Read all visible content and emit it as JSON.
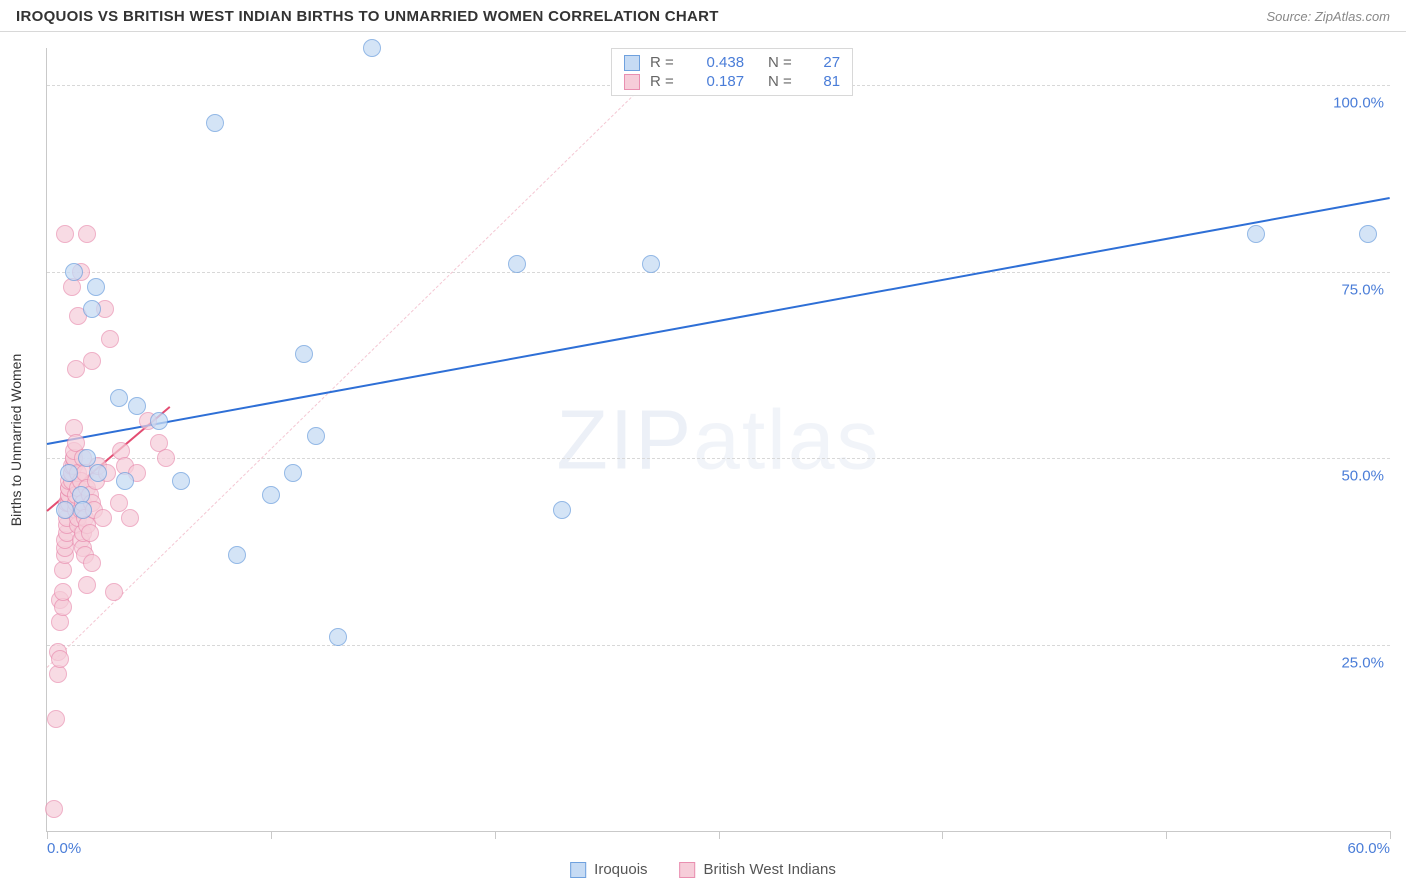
{
  "header": {
    "title": "IROQUOIS VS BRITISH WEST INDIAN BIRTHS TO UNMARRIED WOMEN CORRELATION CHART",
    "source": "Source: ZipAtlas.com"
  },
  "watermark": {
    "bold": "ZIP",
    "light": "atlas"
  },
  "chart": {
    "type": "scatter",
    "y_axis_title": "Births to Unmarried Women",
    "xlim": [
      0,
      60
    ],
    "ylim": [
      0,
      105
    ],
    "x_ticks": [
      0,
      10,
      20,
      30,
      40,
      50,
      60
    ],
    "x_tick_labels": [
      "0.0%",
      "",
      "",
      "",
      "",
      "",
      "60.0%"
    ],
    "y_grid": [
      25,
      50,
      75,
      100
    ],
    "y_grid_labels": [
      "25.0%",
      "50.0%",
      "75.0%",
      "100.0%"
    ],
    "marker_radius": 9,
    "grid_color": "#d8d8d8",
    "axis_color": "#c9c9c9",
    "background_color": "#ffffff",
    "title_fontsize": 15,
    "label_fontsize": 15,
    "tick_color": "#4a7dd8"
  },
  "series": {
    "iroquois": {
      "label": "Iroquois",
      "fill": "#c6dbf4",
      "stroke": "#6fa1de",
      "fill_opacity": 0.75,
      "R": "0.438",
      "N": "27",
      "trend": {
        "x1": 0,
        "y1": 52,
        "x2": 60,
        "y2": 85,
        "color": "#2e6fd6",
        "width": 2.5,
        "dash": false
      },
      "extrapolate": {
        "x1": 0,
        "y1": 22,
        "x2": 28,
        "y2": 104,
        "color": "#f4c7d3",
        "width": 1,
        "dash": true
      },
      "points": [
        [
          0.8,
          43
        ],
        [
          1.0,
          48
        ],
        [
          1.2,
          75
        ],
        [
          1.5,
          45
        ],
        [
          1.6,
          43
        ],
        [
          1.8,
          50
        ],
        [
          2.0,
          70
        ],
        [
          2.2,
          73
        ],
        [
          2.3,
          48
        ],
        [
          3.2,
          58
        ],
        [
          3.5,
          47
        ],
        [
          4.0,
          57
        ],
        [
          5.0,
          55
        ],
        [
          6.0,
          47
        ],
        [
          7.5,
          95
        ],
        [
          8.5,
          37
        ],
        [
          10.0,
          45
        ],
        [
          11.0,
          48
        ],
        [
          11.5,
          64
        ],
        [
          12.0,
          53
        ],
        [
          13.0,
          26
        ],
        [
          14.5,
          105
        ],
        [
          21.0,
          76
        ],
        [
          23.0,
          43
        ],
        [
          27.0,
          76
        ],
        [
          54.0,
          80
        ],
        [
          59.0,
          80
        ]
      ]
    },
    "bwi": {
      "label": "British West Indians",
      "fill": "#f6cdd9",
      "stroke": "#e98fb0",
      "fill_opacity": 0.7,
      "R": "0.187",
      "N": "81",
      "trend": {
        "x1": 0,
        "y1": 43,
        "x2": 5.5,
        "y2": 57,
        "color": "#e34d72",
        "width": 2,
        "dash": false
      },
      "points": [
        [
          0.3,
          3
        ],
        [
          0.4,
          15
        ],
        [
          0.5,
          21
        ],
        [
          0.5,
          24
        ],
        [
          0.6,
          23
        ],
        [
          0.6,
          28
        ],
        [
          0.6,
          31
        ],
        [
          0.7,
          30
        ],
        [
          0.7,
          32
        ],
        [
          0.7,
          35
        ],
        [
          0.8,
          37
        ],
        [
          0.8,
          38
        ],
        [
          0.8,
          39
        ],
        [
          0.8,
          80
        ],
        [
          0.9,
          40
        ],
        [
          0.9,
          41
        ],
        [
          0.9,
          42
        ],
        [
          0.9,
          43
        ],
        [
          0.9,
          44
        ],
        [
          1.0,
          44
        ],
        [
          1.0,
          45
        ],
        [
          1.0,
          45
        ],
        [
          1.0,
          46
        ],
        [
          1.0,
          46
        ],
        [
          1.0,
          47
        ],
        [
          1.1,
          47
        ],
        [
          1.1,
          48
        ],
        [
          1.1,
          48
        ],
        [
          1.1,
          49
        ],
        [
          1.1,
          73
        ],
        [
          1.2,
          49
        ],
        [
          1.2,
          50
        ],
        [
          1.2,
          50
        ],
        [
          1.2,
          51
        ],
        [
          1.2,
          54
        ],
        [
          1.3,
          43
        ],
        [
          1.3,
          44
        ],
        [
          1.3,
          45
        ],
        [
          1.3,
          52
        ],
        [
          1.3,
          62
        ],
        [
          1.4,
          41
        ],
        [
          1.4,
          42
        ],
        [
          1.4,
          46
        ],
        [
          1.4,
          48
        ],
        [
          1.4,
          69
        ],
        [
          1.5,
          39
        ],
        [
          1.5,
          43
        ],
        [
          1.5,
          47
        ],
        [
          1.5,
          75
        ],
        [
          1.6,
          38
        ],
        [
          1.6,
          40
        ],
        [
          1.6,
          44
        ],
        [
          1.6,
          50
        ],
        [
          1.7,
          37
        ],
        [
          1.7,
          42
        ],
        [
          1.7,
          48
        ],
        [
          1.8,
          33
        ],
        [
          1.8,
          41
        ],
        [
          1.8,
          46
        ],
        [
          1.8,
          80
        ],
        [
          1.9,
          40
        ],
        [
          1.9,
          45
        ],
        [
          2.0,
          36
        ],
        [
          2.0,
          44
        ],
        [
          2.0,
          63
        ],
        [
          2.1,
          43
        ],
        [
          2.2,
          47
        ],
        [
          2.3,
          49
        ],
        [
          2.5,
          42
        ],
        [
          2.6,
          70
        ],
        [
          2.7,
          48
        ],
        [
          2.8,
          66
        ],
        [
          3.0,
          32
        ],
        [
          3.2,
          44
        ],
        [
          3.3,
          51
        ],
        [
          3.5,
          49
        ],
        [
          3.7,
          42
        ],
        [
          4.0,
          48
        ],
        [
          4.5,
          55
        ],
        [
          5.0,
          52
        ],
        [
          5.3,
          50
        ]
      ]
    }
  },
  "legend_top": {
    "position_pctX": 42,
    "labels": {
      "R": "R =",
      "N": "N ="
    }
  },
  "bottom_legend": {
    "items": [
      "iroquois",
      "bwi"
    ]
  }
}
